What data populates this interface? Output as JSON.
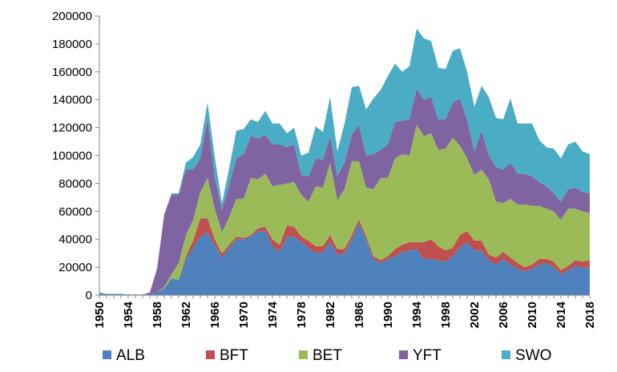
{
  "chart_data": {
    "type": "area",
    "stacked": true,
    "x": [
      1950,
      1951,
      1952,
      1953,
      1954,
      1955,
      1956,
      1957,
      1958,
      1959,
      1960,
      1961,
      1962,
      1963,
      1964,
      1965,
      1966,
      1967,
      1968,
      1969,
      1970,
      1971,
      1972,
      1973,
      1974,
      1975,
      1976,
      1977,
      1978,
      1979,
      1980,
      1981,
      1982,
      1983,
      1984,
      1985,
      1986,
      1987,
      1988,
      1989,
      1990,
      1991,
      1992,
      1993,
      1994,
      1995,
      1996,
      1997,
      1998,
      1999,
      2000,
      2001,
      2002,
      2003,
      2004,
      2005,
      2006,
      2007,
      2008,
      2009,
      2010,
      2011,
      2012,
      2013,
      2014,
      2015,
      2016,
      2017,
      2018
    ],
    "x_tick_labels": [
      "1950",
      "1954",
      "1958",
      "1962",
      "1966",
      "1970",
      "1974",
      "1978",
      "1982",
      "1986",
      "1990",
      "1994",
      "1998",
      "2002",
      "2006",
      "2010",
      "2014",
      "2018"
    ],
    "y_tick_labels": [
      "0",
      "20000",
      "40000",
      "60000",
      "80000",
      "100000",
      "120000",
      "140000",
      "160000",
      "180000",
      "200000"
    ],
    "ylim": [
      0,
      200000
    ],
    "legend_position": "bottom",
    "title": "",
    "xlabel": "",
    "ylabel": "",
    "series": [
      {
        "name": "ALB",
        "color": "#4F81BD",
        "values": [
          1000,
          500,
          500,
          0,
          0,
          0,
          0,
          1000,
          2000,
          5000,
          12000,
          11000,
          26000,
          34000,
          42000,
          45000,
          36000,
          27000,
          34000,
          40000,
          40000,
          42000,
          46000,
          46000,
          35000,
          31000,
          42000,
          42000,
          38000,
          34000,
          30000,
          31000,
          38000,
          29000,
          30000,
          40000,
          51000,
          40000,
          26000,
          23000,
          26000,
          28000,
          31000,
          32000,
          33000,
          26000,
          26000,
          25000,
          24000,
          28000,
          34000,
          38000,
          32000,
          32000,
          25000,
          22000,
          26000,
          22000,
          19000,
          17000,
          19000,
          22000,
          23000,
          20000,
          15000,
          18000,
          21000,
          20000,
          20000
        ]
      },
      {
        "name": "BFT",
        "color": "#C0504D",
        "values": [
          0,
          0,
          0,
          0,
          0,
          0,
          0,
          0,
          0,
          0,
          0,
          0,
          2000,
          5000,
          13000,
          10000,
          4000,
          3000,
          2000,
          2000,
          1000,
          1000,
          2000,
          3000,
          5000,
          5000,
          8000,
          7000,
          4000,
          5000,
          5000,
          4000,
          5000,
          4000,
          3000,
          3000,
          3000,
          2000,
          2000,
          2000,
          2000,
          5000,
          5000,
          6000,
          5000,
          12000,
          14000,
          10000,
          8000,
          6000,
          9000,
          8000,
          7000,
          7000,
          4000,
          5000,
          5000,
          5000,
          4000,
          3000,
          3000,
          4000,
          3000,
          4000,
          3000,
          3000,
          4000,
          4000,
          5000
        ]
      },
      {
        "name": "BET",
        "color": "#9BBB59",
        "values": [
          0,
          0,
          0,
          0,
          0,
          0,
          0,
          0,
          0,
          1000,
          3000,
          12000,
          15000,
          15000,
          19000,
          29000,
          22000,
          15000,
          20000,
          27000,
          28000,
          41000,
          35000,
          38000,
          38000,
          43000,
          30000,
          32000,
          30000,
          28000,
          43000,
          42000,
          52000,
          35000,
          43000,
          53000,
          42000,
          35000,
          48000,
          59000,
          56000,
          65000,
          65000,
          62000,
          84000,
          76000,
          76000,
          69000,
          73000,
          79000,
          64000,
          52000,
          47000,
          51000,
          54000,
          40000,
          35000,
          42000,
          42000,
          45000,
          42000,
          38000,
          36000,
          36000,
          36000,
          41000,
          37000,
          36000,
          34000
        ]
      },
      {
        "name": "YFT",
        "color": "#8064A2",
        "values": [
          0,
          0,
          0,
          0,
          0,
          0,
          0,
          1000,
          17000,
          52000,
          57000,
          49000,
          47000,
          36000,
          24000,
          42000,
          22000,
          16000,
          23000,
          29000,
          32000,
          30000,
          29000,
          28000,
          30000,
          29000,
          26000,
          27000,
          14000,
          18000,
          20000,
          20000,
          19000,
          17000,
          19000,
          19000,
          26000,
          23000,
          25000,
          20000,
          24000,
          26000,
          24000,
          26000,
          26000,
          26000,
          26000,
          22000,
          21000,
          25000,
          34000,
          27000,
          17000,
          28000,
          17000,
          25000,
          24000,
          26000,
          22000,
          22000,
          21000,
          17000,
          16000,
          13000,
          13000,
          14000,
          15000,
          14000,
          14000
        ]
      },
      {
        "name": "SWO",
        "color": "#4BACC6",
        "values": [
          1000,
          500,
          500,
          1000,
          500,
          500,
          500,
          0,
          0,
          0,
          1000,
          1000,
          5000,
          9000,
          10000,
          12000,
          15000,
          5000,
          12000,
          20000,
          18000,
          12000,
          12000,
          17000,
          15000,
          15000,
          10000,
          12000,
          14000,
          17000,
          23000,
          20000,
          28000,
          18000,
          28000,
          34000,
          28000,
          33000,
          40000,
          43000,
          49000,
          42000,
          35000,
          38000,
          43000,
          44000,
          40000,
          37000,
          36000,
          37000,
          36000,
          35000,
          32000,
          32000,
          42000,
          35000,
          36000,
          46000,
          36000,
          36000,
          38000,
          30000,
          28000,
          32000,
          31000,
          32000,
          33000,
          29000,
          28000
        ]
      }
    ]
  }
}
